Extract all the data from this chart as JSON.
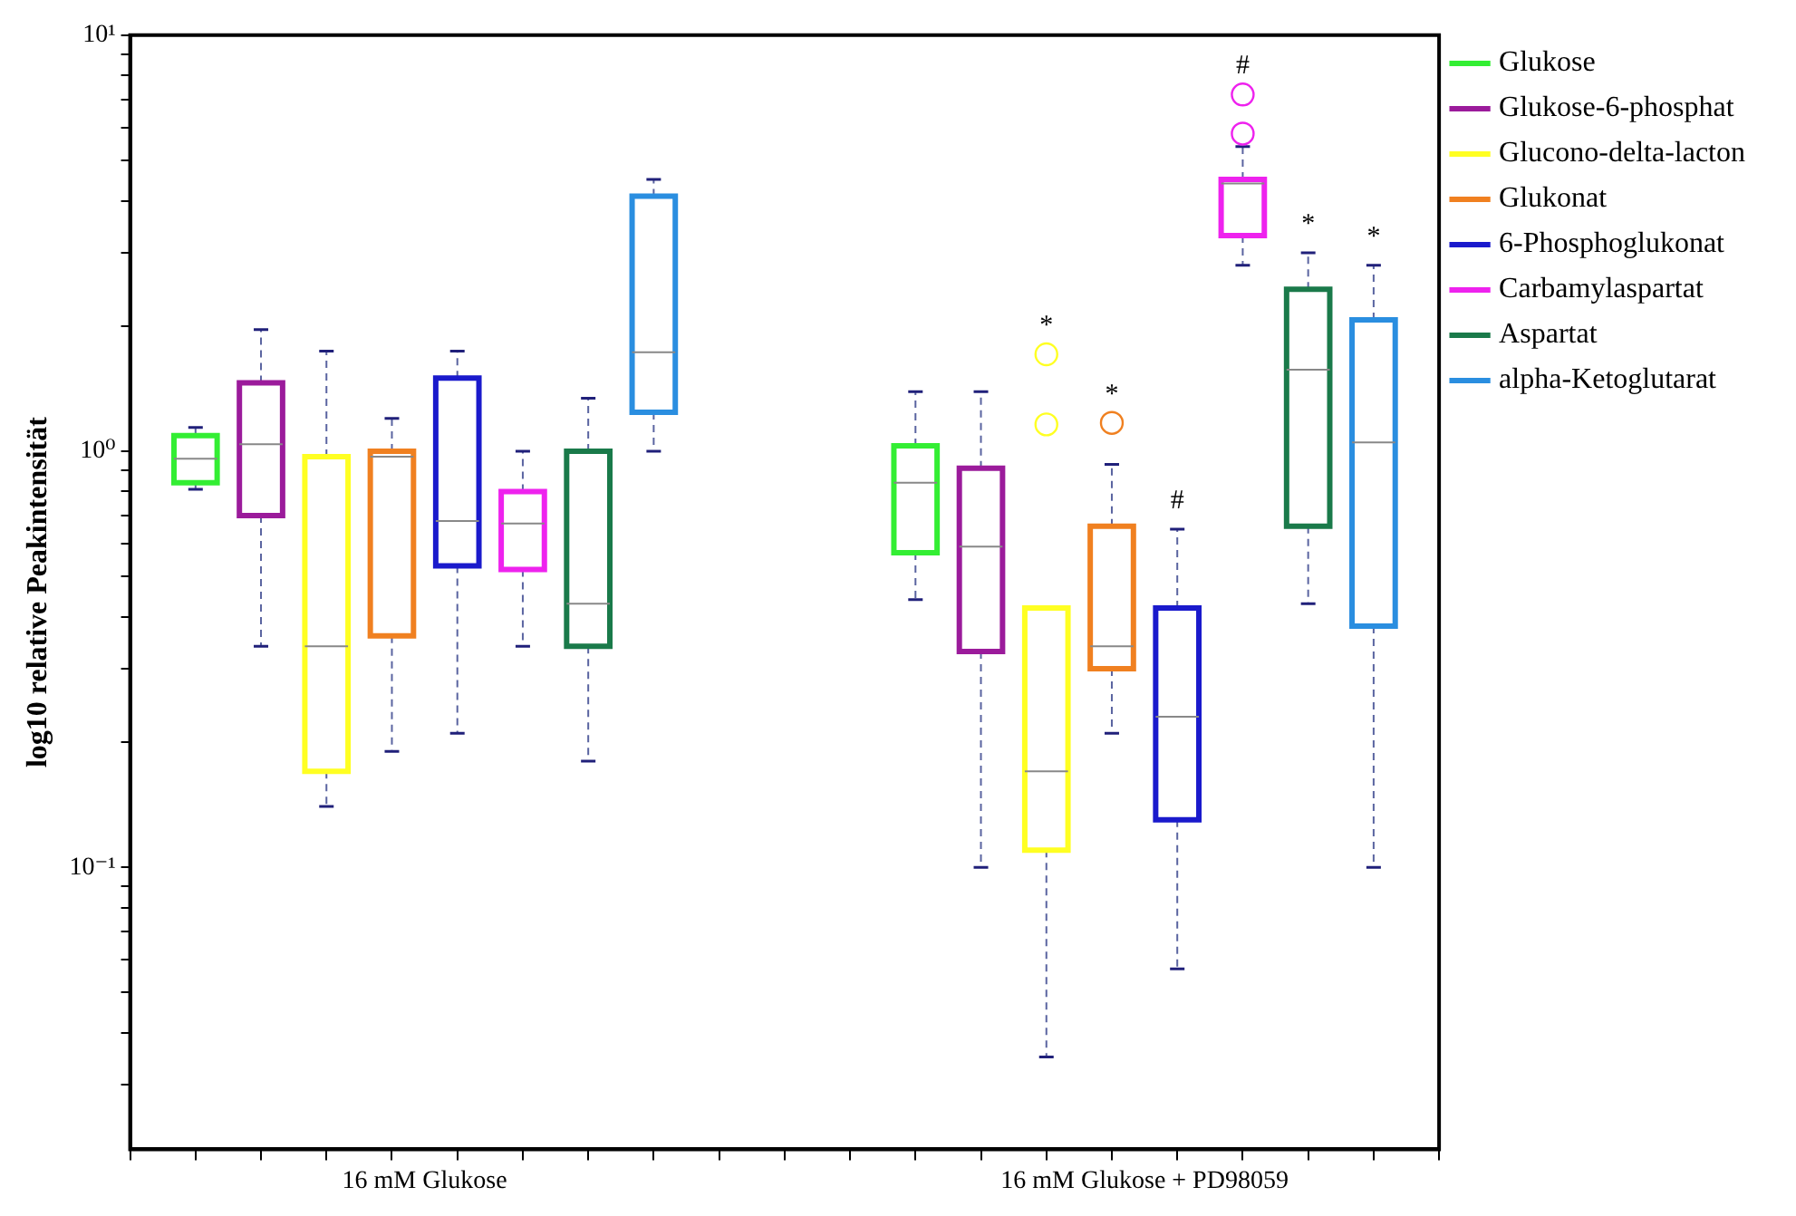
{
  "chart_data": {
    "type": "box",
    "ylabel": "log10 relative Peakintensität",
    "categories": [
      "16 mM Glukose",
      "16 mM Glukose + PD98059"
    ],
    "log": true,
    "ylim": [
      0.021,
      10
    ],
    "yticks": [
      {
        "value": 0.03,
        "label": null
      },
      {
        "value": 0.04,
        "label": null
      },
      {
        "value": 0.05,
        "label": null
      },
      {
        "value": 0.06,
        "label": null
      },
      {
        "value": 0.07,
        "label": null
      },
      {
        "value": 0.08,
        "label": null
      },
      {
        "value": 0.09,
        "label": null
      },
      {
        "value": 0.1,
        "label": "10⁻¹"
      },
      {
        "value": 0.2,
        "label": null
      },
      {
        "value": 0.3,
        "label": null
      },
      {
        "value": 0.4,
        "label": null
      },
      {
        "value": 0.5,
        "label": null
      },
      {
        "value": 0.6,
        "label": null
      },
      {
        "value": 0.7,
        "label": null
      },
      {
        "value": 0.8,
        "label": null
      },
      {
        "value": 0.9,
        "label": null
      },
      {
        "value": 1,
        "label": "10⁰"
      },
      {
        "value": 2,
        "label": null
      },
      {
        "value": 3,
        "label": null
      },
      {
        "value": 4,
        "label": null
      },
      {
        "value": 5,
        "label": null
      },
      {
        "value": 6,
        "label": null
      },
      {
        "value": 7,
        "label": null
      },
      {
        "value": 8,
        "label": null
      },
      {
        "value": 9,
        "label": null
      },
      {
        "value": 10,
        "label": "10¹"
      }
    ],
    "legend": "right",
    "series": [
      {
        "name": "Glukose",
        "color": "#33ee33",
        "boxes": [
          {
            "low": 0.81,
            "q1": 0.84,
            "median": 0.96,
            "q3": 1.09,
            "high": 1.14
          },
          {
            "low": 0.44,
            "q1": 0.57,
            "median": 0.84,
            "q3": 1.03,
            "high": 1.39
          }
        ]
      },
      {
        "name": "Glukose-6-phosphat",
        "color": "#9b1b9b",
        "boxes": [
          {
            "low": 0.34,
            "q1": 0.7,
            "median": 1.04,
            "q3": 1.46,
            "high": 1.96
          },
          {
            "low": 0.1,
            "q1": 0.33,
            "median": 0.59,
            "q3": 0.91,
            "high": 1.39
          }
        ]
      },
      {
        "name": "Glucono-delta-lacton",
        "color": "#ffff22",
        "boxes": [
          {
            "low": 0.14,
            "q1": 0.17,
            "median": 0.34,
            "q3": 0.97,
            "high": 1.74
          },
          {
            "low": 0.035,
            "q1": 0.11,
            "median": 0.17,
            "q3": 0.42,
            "high": 0.42,
            "outliers": [
              1.71,
              1.16
            ]
          }
        ]
      },
      {
        "name": "Glukonat",
        "color": "#f08020",
        "boxes": [
          {
            "low": 0.19,
            "q1": 0.36,
            "median": 0.97,
            "q3": 1.0,
            "high": 1.2
          },
          {
            "low": 0.21,
            "q1": 0.3,
            "median": 0.34,
            "q3": 0.66,
            "high": 0.93,
            "outliers": [
              1.17
            ]
          }
        ]
      },
      {
        "name": "6-Phosphoglukonat",
        "color": "#1a1acc",
        "boxes": [
          {
            "low": 0.21,
            "q1": 0.53,
            "median": 0.68,
            "q3": 1.5,
            "high": 1.74
          },
          {
            "low": 0.057,
            "q1": 0.13,
            "median": 0.23,
            "q3": 0.42,
            "high": 0.65
          }
        ]
      },
      {
        "name": "Carbamylaspartat",
        "color": "#ee22ee",
        "boxes": [
          {
            "low": 0.34,
            "q1": 0.52,
            "median": 0.67,
            "q3": 0.8,
            "high": 1.0
          },
          {
            "low": 2.8,
            "q1": 3.3,
            "median": 4.4,
            "q3": 4.5,
            "high": 5.4,
            "outliers": [
              7.2,
              5.8
            ]
          }
        ]
      },
      {
        "name": "Aspartat",
        "color": "#1a7a4a",
        "boxes": [
          {
            "low": 0.18,
            "q1": 0.34,
            "median": 0.43,
            "q3": 1.0,
            "high": 1.34
          },
          {
            "low": 0.43,
            "q1": 0.66,
            "median": 1.57,
            "q3": 2.45,
            "high": 3.0
          }
        ]
      },
      {
        "name": "alpha-Ketoglutarat",
        "color": "#2a8ee0",
        "boxes": [
          {
            "low": 1.0,
            "q1": 1.24,
            "median": 1.73,
            "q3": 4.1,
            "high": 4.5
          },
          {
            "low": 0.1,
            "q1": 0.38,
            "median": 1.05,
            "q3": 2.07,
            "high": 2.8
          }
        ]
      }
    ],
    "annotations": [
      "*",
      "*",
      "#",
      "#",
      "*",
      "*"
    ]
  }
}
